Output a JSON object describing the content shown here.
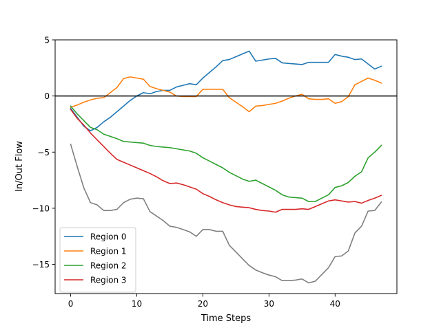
{
  "chart_data": {
    "type": "line",
    "title": "",
    "xlabel": "Time Steps",
    "ylabel": "In/Out Flow",
    "xlim": [
      -2.35,
      49.35
    ],
    "ylim": [
      -17.6,
      5.0
    ],
    "xticks": [
      0,
      10,
      20,
      30,
      40
    ],
    "yticks": [
      5,
      0,
      -5,
      -10,
      -15
    ],
    "grid": false,
    "legend_position": "lower-left",
    "reference_line": {
      "y": 0,
      "color": "#000000"
    },
    "x": [
      0,
      1,
      2,
      3,
      4,
      5,
      6,
      7,
      8,
      9,
      10,
      11,
      12,
      13,
      14,
      15,
      16,
      17,
      18,
      19,
      20,
      21,
      22,
      23,
      24,
      25,
      26,
      27,
      28,
      29,
      30,
      31,
      32,
      33,
      34,
      35,
      36,
      37,
      38,
      39,
      40,
      41,
      42,
      43,
      44,
      45,
      46,
      47
    ],
    "series": [
      {
        "name": "Region 0",
        "color": "#1f77b4",
        "values": [
          -1.1,
          -1.9,
          -2.7,
          -3.1,
          -2.8,
          -2.3,
          -1.9,
          -1.4,
          -0.9,
          -0.4,
          0.0,
          0.3,
          0.2,
          0.4,
          0.5,
          0.5,
          0.8,
          0.95,
          1.1,
          1.0,
          1.6,
          2.1,
          2.6,
          3.15,
          3.25,
          3.5,
          3.75,
          4.0,
          3.1,
          3.2,
          3.3,
          3.35,
          2.95,
          2.9,
          2.85,
          2.8,
          3.0,
          3.0,
          3.0,
          3.0,
          3.7,
          3.55,
          3.45,
          3.25,
          3.3,
          2.85,
          2.4,
          2.65
        ]
      },
      {
        "name": "Region 1",
        "color": "#ff7f0e",
        "values": [
          -1.0,
          -0.8,
          -0.55,
          -0.35,
          -0.2,
          -0.15,
          0.3,
          0.75,
          1.55,
          1.7,
          1.6,
          1.5,
          0.85,
          0.65,
          0.5,
          0.35,
          0.0,
          -0.05,
          -0.05,
          -0.05,
          0.6,
          0.6,
          0.6,
          0.6,
          -0.15,
          -0.55,
          -0.95,
          -1.4,
          -0.9,
          -0.85,
          -0.75,
          -0.65,
          -0.45,
          -0.2,
          0.0,
          0.15,
          -0.25,
          -0.3,
          -0.3,
          -0.25,
          -0.65,
          -0.5,
          -0.05,
          1.0,
          1.3,
          1.6,
          1.4,
          1.15
        ]
      },
      {
        "name": "Region 2",
        "color": "#2ca02c",
        "values": [
          -0.9,
          -1.6,
          -2.2,
          -2.8,
          -3.0,
          -3.4,
          -3.6,
          -3.8,
          -4.05,
          -4.1,
          -4.15,
          -4.2,
          -4.4,
          -4.5,
          -4.55,
          -4.6,
          -4.7,
          -4.8,
          -4.9,
          -5.1,
          -5.5,
          -5.8,
          -6.1,
          -6.4,
          -6.8,
          -7.1,
          -7.4,
          -7.6,
          -7.5,
          -7.8,
          -8.1,
          -8.4,
          -8.8,
          -9.0,
          -9.05,
          -9.1,
          -9.4,
          -9.4,
          -9.1,
          -8.8,
          -8.15,
          -8.0,
          -7.7,
          -7.15,
          -6.75,
          -5.5,
          -5.0,
          -4.4
        ]
      },
      {
        "name": "Region 3",
        "color": "#d62728",
        "values": [
          -1.2,
          -2.0,
          -2.6,
          -3.3,
          -3.9,
          -4.5,
          -5.1,
          -5.65,
          -5.9,
          -6.15,
          -6.4,
          -6.65,
          -6.9,
          -7.2,
          -7.55,
          -7.8,
          -7.75,
          -7.9,
          -8.1,
          -8.3,
          -8.7,
          -8.95,
          -9.25,
          -9.5,
          -9.7,
          -9.85,
          -9.9,
          -9.95,
          -10.1,
          -10.2,
          -10.25,
          -10.35,
          -10.1,
          -10.1,
          -10.1,
          -10.05,
          -10.1,
          -9.85,
          -9.6,
          -9.35,
          -9.25,
          -9.35,
          -9.45,
          -9.4,
          -9.55,
          -9.3,
          -9.1,
          -8.85
        ]
      },
      {
        "color": "#7f7f7f",
        "values": [
          -4.3,
          -6.3,
          -8.2,
          -9.5,
          -9.7,
          -10.2,
          -10.2,
          -10.1,
          -9.5,
          -9.2,
          -9.1,
          -9.15,
          -10.3,
          -10.7,
          -11.1,
          -11.6,
          -11.7,
          -11.9,
          -12.1,
          -12.5,
          -11.9,
          -11.9,
          -12.05,
          -12.05,
          -13.3,
          -13.9,
          -14.5,
          -15.1,
          -15.5,
          -15.75,
          -15.95,
          -16.1,
          -16.45,
          -16.45,
          -16.4,
          -16.3,
          -16.65,
          -16.5,
          -15.9,
          -15.3,
          -14.3,
          -14.25,
          -13.8,
          -12.2,
          -11.6,
          -10.25,
          -10.2,
          -9.45
        ]
      }
    ]
  }
}
